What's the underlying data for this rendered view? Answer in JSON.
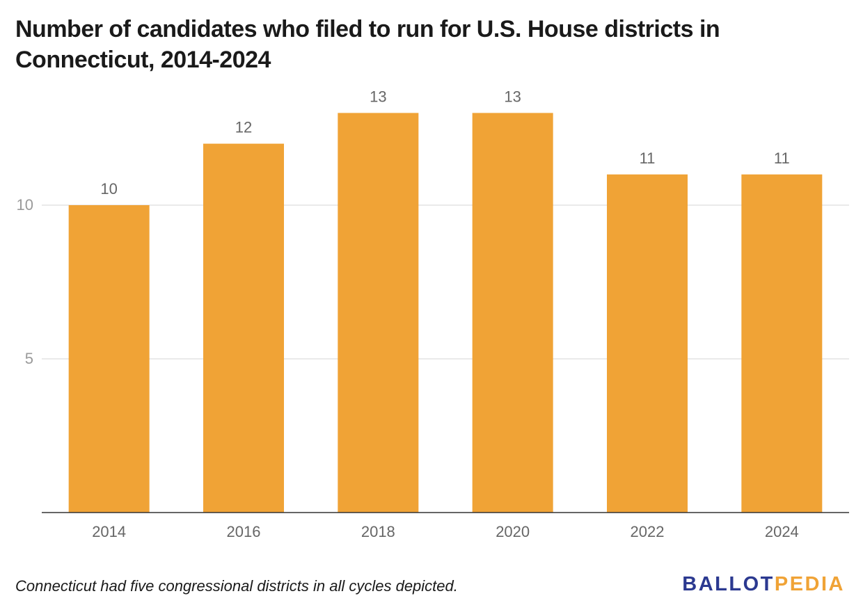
{
  "chart_data": {
    "type": "bar",
    "title": "Number of candidates who filed to run for U.S. House districts in Connecticut, 2014-2024",
    "xlabel": "",
    "ylabel": "",
    "categories": [
      "2014",
      "2016",
      "2018",
      "2020",
      "2022",
      "2024"
    ],
    "values": [
      10,
      12,
      13,
      13,
      11,
      11
    ],
    "data_labels": [
      "10",
      "12",
      "13",
      "13",
      "11",
      "11"
    ],
    "ylim": [
      0,
      13
    ],
    "y_ticks": [
      5,
      10
    ],
    "y_tick_labels": [
      "5",
      "10"
    ],
    "grid": true,
    "legend": "none",
    "bar_color": "#f0a336"
  },
  "footnote": "Connecticut had five congressional districts in all cycles depicted.",
  "brand": {
    "part1": "BALLOT",
    "part2": "PEDIA",
    "color1": "#2b3990",
    "color2": "#f0a336"
  }
}
